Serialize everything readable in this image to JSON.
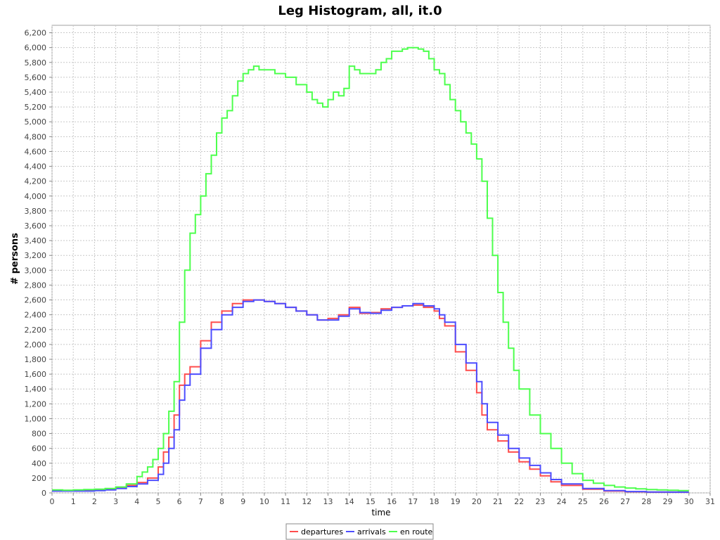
{
  "chart_data": {
    "type": "line",
    "title": "Leg Histogram, all, it.0",
    "xlabel": "time",
    "ylabel": "# persons",
    "xlim": [
      0,
      31
    ],
    "ylim": [
      0,
      6300
    ],
    "x_ticks": [
      "0",
      "1",
      "2",
      "3",
      "4",
      "5",
      "6",
      "7",
      "8",
      "9",
      "10",
      "11",
      "12",
      "13",
      "14",
      "15",
      "16",
      "17",
      "18",
      "19",
      "20",
      "21",
      "22",
      "23",
      "24",
      "25",
      "26",
      "27",
      "28",
      "29",
      "30",
      "31"
    ],
    "y_ticks": [
      "0",
      "200",
      "400",
      "600",
      "800",
      "1,000",
      "1,200",
      "1,400",
      "1,600",
      "1,800",
      "2,000",
      "2,200",
      "2,400",
      "2,600",
      "2,800",
      "3,000",
      "3,200",
      "3,400",
      "3,600",
      "3,800",
      "4,000",
      "4,200",
      "4,400",
      "4,600",
      "4,800",
      "5,000",
      "5,200",
      "5,400",
      "5,600",
      "5,800",
      "6,000",
      "6,200"
    ],
    "grid": true,
    "legend_position": "bottom",
    "series": [
      {
        "name": "departures",
        "color": "#ff4d4d",
        "x": [
          0,
          1,
          2,
          2.5,
          3,
          3.5,
          4,
          4.5,
          5,
          5.25,
          5.5,
          5.75,
          6,
          6.25,
          6.5,
          7,
          7.5,
          8,
          8.5,
          9,
          9.5,
          10,
          10.5,
          11,
          11.5,
          12,
          12.5,
          13,
          13.5,
          14,
          14.5,
          15,
          15.5,
          16,
          16.5,
          17,
          17.5,
          18,
          18.25,
          18.5,
          19,
          19.5,
          20,
          20.25,
          20.5,
          21,
          21.5,
          22,
          22.5,
          23,
          23.5,
          24,
          25,
          26,
          27,
          28,
          29,
          30
        ],
        "y": [
          30,
          30,
          35,
          45,
          70,
          100,
          140,
          200,
          350,
          550,
          750,
          1050,
          1450,
          1600,
          1700,
          2050,
          2300,
          2450,
          2550,
          2600,
          2600,
          2580,
          2550,
          2500,
          2450,
          2400,
          2330,
          2350,
          2400,
          2500,
          2420,
          2430,
          2480,
          2500,
          2520,
          2530,
          2500,
          2450,
          2350,
          2250,
          1900,
          1650,
          1350,
          1050,
          850,
          700,
          550,
          420,
          320,
          230,
          150,
          100,
          50,
          25,
          15,
          10,
          10,
          10
        ]
      },
      {
        "name": "arrivals",
        "color": "#4d4dff",
        "x": [
          0,
          1,
          2,
          2.5,
          3,
          3.5,
          4,
          4.5,
          5,
          5.25,
          5.5,
          5.75,
          6,
          6.25,
          6.5,
          7,
          7.5,
          8,
          8.5,
          9,
          9.5,
          10,
          10.5,
          11,
          11.5,
          12,
          12.5,
          13,
          13.5,
          14,
          14.5,
          15,
          15.5,
          16,
          16.5,
          17,
          17.5,
          18,
          18.25,
          18.5,
          19,
          19.5,
          20,
          20.25,
          20.5,
          21,
          21.5,
          22,
          22.5,
          23,
          23.5,
          24,
          25,
          26,
          27,
          28,
          29,
          30
        ],
        "y": [
          25,
          25,
          30,
          40,
          60,
          85,
          120,
          170,
          250,
          400,
          600,
          850,
          1250,
          1450,
          1600,
          1950,
          2200,
          2400,
          2500,
          2580,
          2600,
          2580,
          2550,
          2500,
          2450,
          2400,
          2330,
          2330,
          2380,
          2480,
          2430,
          2420,
          2460,
          2500,
          2520,
          2550,
          2520,
          2480,
          2400,
          2300,
          2000,
          1750,
          1500,
          1200,
          950,
          780,
          600,
          470,
          370,
          270,
          180,
          120,
          60,
          30,
          18,
          12,
          10,
          10
        ]
      },
      {
        "name": "en route",
        "color": "#4dff4d",
        "x": [
          0,
          0.5,
          1,
          1.5,
          2,
          2.5,
          3,
          3.5,
          4,
          4.25,
          4.5,
          4.75,
          5,
          5.25,
          5.5,
          5.75,
          6,
          6.25,
          6.5,
          6.75,
          7,
          7.25,
          7.5,
          7.75,
          8,
          8.25,
          8.5,
          8.75,
          9,
          9.25,
          9.5,
          9.75,
          10,
          10.5,
          11,
          11.5,
          12,
          12.25,
          12.5,
          12.75,
          13,
          13.25,
          13.5,
          13.75,
          14,
          14.25,
          14.5,
          14.75,
          15,
          15.25,
          15.5,
          15.75,
          16,
          16.25,
          16.5,
          16.75,
          17,
          17.25,
          17.5,
          17.75,
          18,
          18.25,
          18.5,
          18.75,
          19,
          19.25,
          19.5,
          19.75,
          20,
          20.25,
          20.5,
          20.75,
          21,
          21.25,
          21.5,
          21.75,
          22,
          22.5,
          23,
          23.5,
          24,
          24.5,
          25,
          25.5,
          26,
          26.5,
          27,
          27.5,
          28,
          28.5,
          29,
          29.5,
          30
        ],
        "y": [
          40,
          35,
          40,
          45,
          50,
          60,
          80,
          120,
          220,
          280,
          350,
          450,
          600,
          800,
          1100,
          1500,
          2300,
          3000,
          3500,
          3750,
          4000,
          4300,
          4550,
          4850,
          5050,
          5150,
          5350,
          5550,
          5650,
          5700,
          5750,
          5700,
          5700,
          5650,
          5600,
          5500,
          5400,
          5300,
          5250,
          5200,
          5300,
          5400,
          5350,
          5450,
          5750,
          5700,
          5650,
          5650,
          5650,
          5700,
          5800,
          5850,
          5950,
          5950,
          5980,
          6000,
          6000,
          5980,
          5950,
          5850,
          5700,
          5650,
          5500,
          5300,
          5150,
          5000,
          4850,
          4700,
          4500,
          4200,
          3700,
          3200,
          2700,
          2300,
          1950,
          1650,
          1400,
          1050,
          800,
          600,
          400,
          260,
          170,
          130,
          100,
          80,
          65,
          55,
          45,
          40,
          35,
          30,
          30
        ]
      }
    ]
  }
}
